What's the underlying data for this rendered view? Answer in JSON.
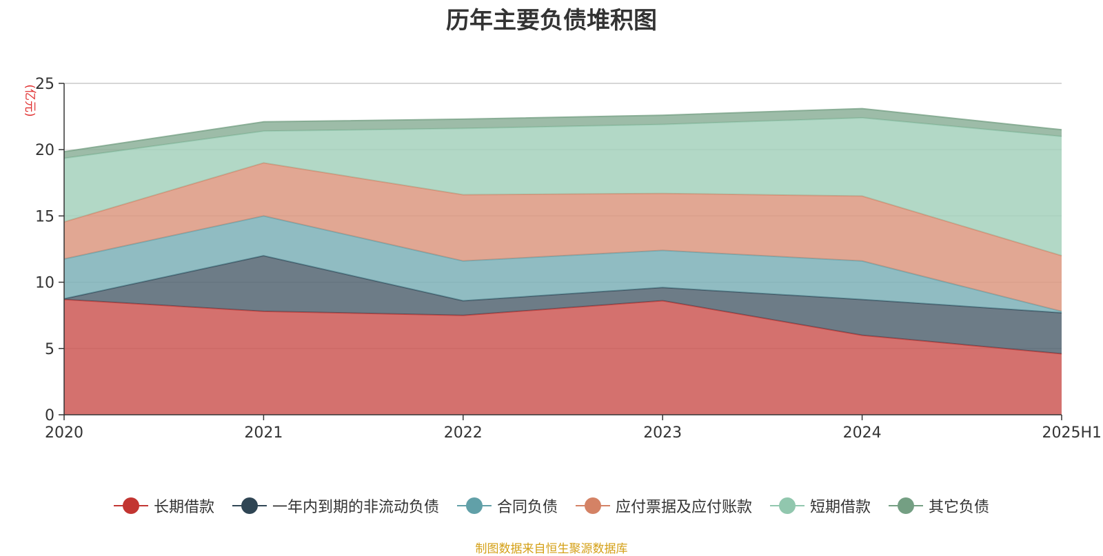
{
  "chart_data": {
    "type": "area",
    "stacked": true,
    "title": "历年主要负债堆积图",
    "ylabel": "(亿元)",
    "xlabel": "",
    "categories": [
      "2020",
      "2021",
      "2022",
      "2023",
      "2024",
      "2025H1"
    ],
    "ylim": [
      0,
      25
    ],
    "yticks": [
      0,
      5,
      10,
      15,
      20,
      25
    ],
    "grid": true,
    "legend_position": "bottom",
    "series": [
      {
        "name": "长期借款",
        "color": "#c23531",
        "values": [
          8.7,
          7.8,
          7.5,
          8.6,
          6.0,
          4.6
        ]
      },
      {
        "name": "一年内到期的非流动负债",
        "color": "#2f4554",
        "values": [
          0.05,
          4.2,
          1.1,
          1.0,
          2.7,
          3.1
        ]
      },
      {
        "name": "合同负债",
        "color": "#61a0a8",
        "values": [
          3.0,
          3.0,
          3.0,
          2.8,
          2.9,
          0.1
        ]
      },
      {
        "name": "应付票据及应付账款",
        "color": "#d48265",
        "values": [
          2.8,
          4.0,
          5.0,
          4.3,
          4.9,
          4.2
        ]
      },
      {
        "name": "短期借款",
        "color": "#91c7ae",
        "values": [
          4.8,
          2.4,
          5.0,
          5.2,
          5.9,
          9.0
        ]
      },
      {
        "name": "其它负债",
        "color": "#749f83",
        "values": [
          0.5,
          0.7,
          0.7,
          0.7,
          0.7,
          0.5
        ]
      }
    ]
  },
  "source_note": "制图数据来自恒生聚源数据库"
}
